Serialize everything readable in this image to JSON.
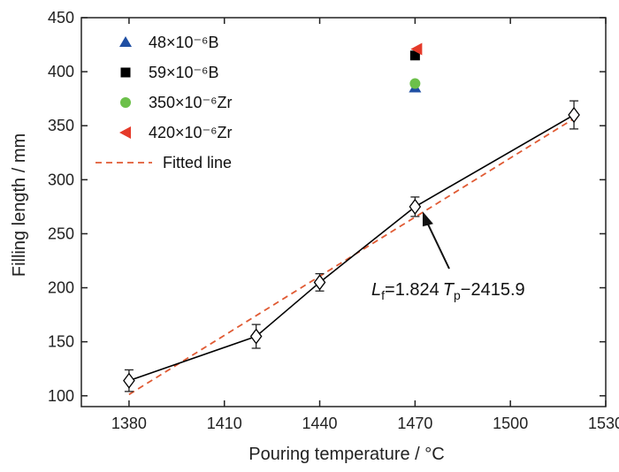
{
  "chart_data": {
    "type": "scatter",
    "xlabel": "Pouring temperature / °C",
    "ylabel": "Filling length / mm",
    "xlim": [
      1365,
      1530
    ],
    "ylim": [
      90,
      450
    ],
    "xticks": [
      1380,
      1410,
      1440,
      1470,
      1500,
      1530
    ],
    "yticks": [
      100,
      150,
      200,
      250,
      300,
      350,
      400,
      450
    ],
    "grid": false,
    "legend_position": "top-left",
    "series": [
      {
        "marker": "diamond-open",
        "line": "solid",
        "color": "#000000",
        "x": [
          1380,
          1420,
          1440,
          1470,
          1520
        ],
        "y": [
          114,
          155,
          205,
          275,
          360
        ],
        "error": [
          10,
          11,
          8,
          9,
          13
        ]
      },
      {
        "name": "Fitted line",
        "line": "dashed",
        "color": "#e05a33",
        "x": [
          1380,
          1520
        ],
        "y": [
          101.2,
          356.6
        ]
      },
      {
        "name": "48×10⁻⁶B",
        "marker": "triangle",
        "color": "#1f4fa3",
        "x": [
          1470
        ],
        "y": [
          385
        ]
      },
      {
        "name": "59×10⁻⁶B",
        "marker": "square",
        "color": "#000000",
        "x": [
          1470
        ],
        "y": [
          415
        ]
      },
      {
        "name": "350×10⁻⁶Zr",
        "marker": "circle",
        "color": "#6cc04a",
        "x": [
          1470
        ],
        "y": [
          389
        ]
      },
      {
        "name": "420×10⁻⁶Zr",
        "marker": "triangle-left",
        "color": "#e53a2a",
        "x": [
          1470
        ],
        "y": [
          421
        ]
      }
    ],
    "annotation": {
      "text": "Lf=1.824 Tp−2415.9",
      "L": "L",
      "f": "f",
      "eq1": "=1.824",
      "T": "T",
      "p": "p",
      "eq2": "−2415.9",
      "arrow_tip": [
        1471,
        269
      ],
      "text_anchor": [
        1468,
        212
      ]
    }
  }
}
